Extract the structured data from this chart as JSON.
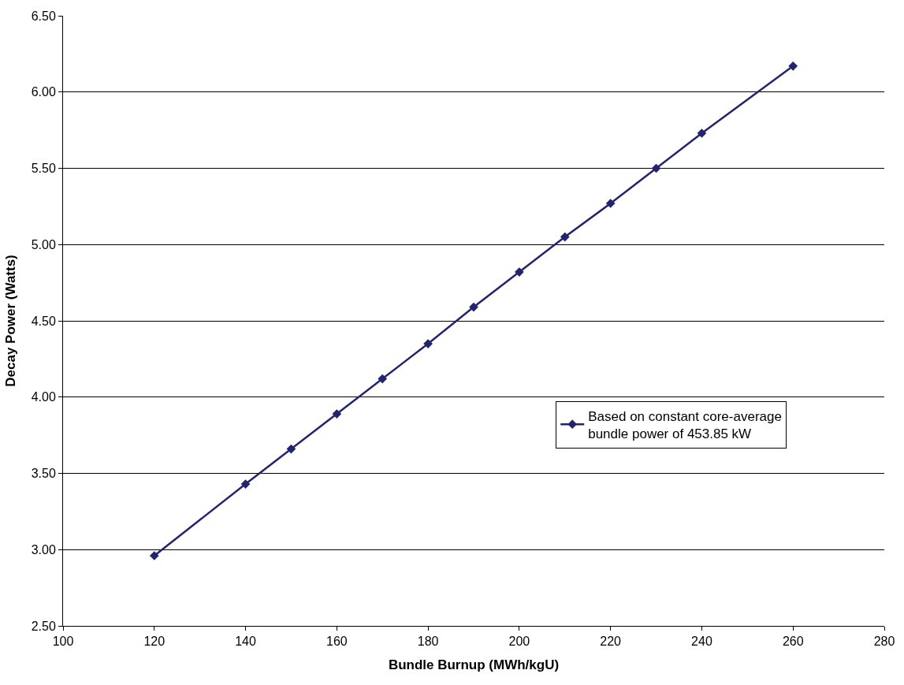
{
  "chart_data": {
    "type": "line",
    "xlabel": "Bundle Burnup (MWh/kgU)",
    "ylabel": "Decay Power (Watts)",
    "x": [
      120,
      140,
      150,
      160,
      170,
      180,
      190,
      200,
      210,
      220,
      230,
      240,
      260
    ],
    "series": [
      {
        "name": "Based on constant core-average bundle power of 453.85 kW",
        "color": "#23236e",
        "values": [
          2.96,
          3.43,
          3.66,
          3.89,
          4.12,
          4.35,
          4.59,
          4.82,
          5.05,
          5.27,
          5.5,
          5.73,
          6.17
        ]
      }
    ],
    "xlim": [
      100,
      280
    ],
    "xticks": [
      100,
      120,
      140,
      160,
      180,
      200,
      220,
      240,
      260,
      280
    ],
    "ylim": [
      2.5,
      6.5
    ],
    "yticks": [
      {
        "value": 2.5,
        "label": "2.50"
      },
      {
        "value": 3,
        "label": "3.00"
      },
      {
        "value": 3.5,
        "label": "3.50"
      },
      {
        "value": 4,
        "label": "4.00"
      },
      {
        "value": 4.5,
        "label": "4.50"
      },
      {
        "value": 5,
        "label": "5.00"
      },
      {
        "value": 5.5,
        "label": "5.50"
      },
      {
        "value": 6,
        "label": "6.00"
      },
      {
        "value": 6.5,
        "label": "6.50"
      }
    ],
    "grid": "y",
    "legend": "right",
    "marker": "diamond",
    "line_style": "solid"
  }
}
